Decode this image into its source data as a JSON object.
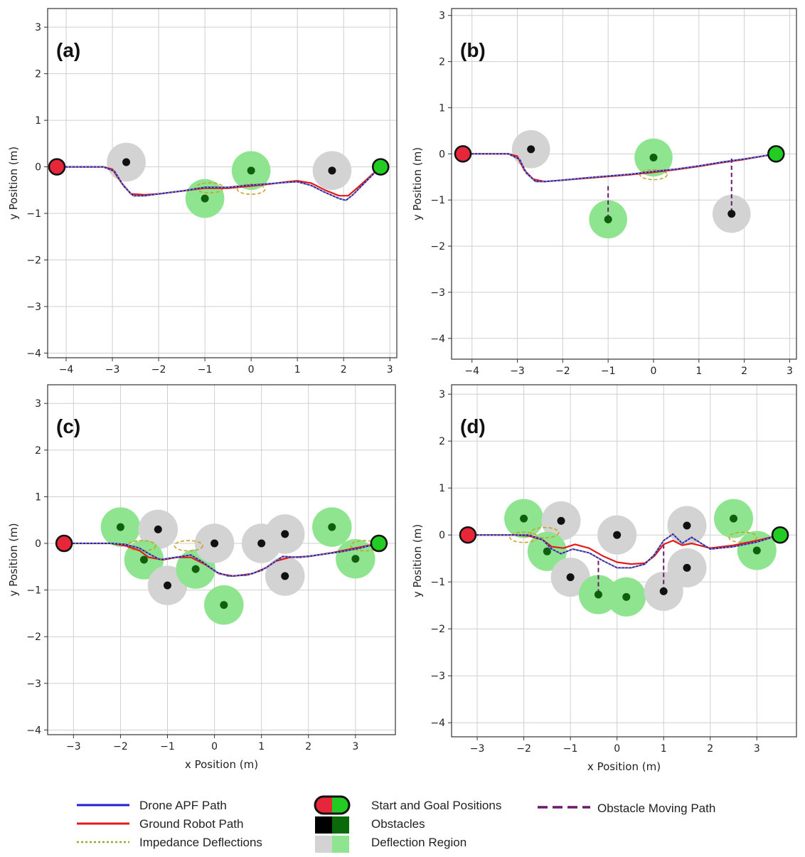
{
  "legend": {
    "drone": "Drone APF Path",
    "ground": "Ground Robot Path",
    "impedance": "Impedance Deflections",
    "start_goal": "Start and Goal Positions",
    "obstacles": "Obstacles",
    "deflection": "Deflection Region",
    "moving": "Obstacle Moving Path"
  },
  "colors": {
    "drone": "#1f1fd6",
    "ground": "#e11b1b",
    "impedance": "#c9a227",
    "moving": "#6a1b6a",
    "start": "#e8263a",
    "goal": "#22cc22",
    "grey_obstacle": "#111111",
    "green_obstacle": "#0f5f0f",
    "grey_region": "#d3d3d3",
    "green_region": "#8fe58f"
  },
  "chart_data": [
    {
      "type": "line",
      "label": "(a)",
      "xlabel": "",
      "ylabel": "y Position (m)",
      "xlim": [
        -4.4,
        3.15
      ],
      "ylim": [
        -4.1,
        3.4
      ],
      "xticks": [
        -4,
        -3,
        -2,
        -1,
        0,
        1,
        2,
        3
      ],
      "yticks": [
        -4,
        -3,
        -2,
        -1,
        0,
        1,
        2,
        3
      ],
      "start": [
        -4.2,
        0
      ],
      "goal": [
        2.8,
        0
      ],
      "obstacles": [
        {
          "x": -2.7,
          "y": 0.1,
          "kind": "grey"
        },
        {
          "x": -1.0,
          "y": -0.68,
          "kind": "green"
        },
        {
          "x": 0.0,
          "y": -0.08,
          "kind": "green"
        },
        {
          "x": 1.75,
          "y": -0.08,
          "kind": "grey"
        }
      ],
      "moving_paths": [],
      "impedance_ellipses": [
        [
          -0.9,
          -0.45
        ],
        [
          0.0,
          -0.48
        ]
      ],
      "ground_path": [
        [
          -4.2,
          0
        ],
        [
          -3.2,
          0
        ],
        [
          -3.0,
          -0.05
        ],
        [
          -2.8,
          -0.35
        ],
        [
          -2.6,
          -0.58
        ],
        [
          -2.3,
          -0.6
        ],
        [
          -2.0,
          -0.58
        ],
        [
          -1.5,
          -0.52
        ],
        [
          -1.2,
          -0.48
        ],
        [
          -1.0,
          -0.46
        ],
        [
          -0.5,
          -0.46
        ],
        [
          -0.1,
          -0.42
        ],
        [
          0.3,
          -0.38
        ],
        [
          0.8,
          -0.32
        ],
        [
          1.0,
          -0.3
        ],
        [
          1.3,
          -0.35
        ],
        [
          1.6,
          -0.5
        ],
        [
          1.9,
          -0.62
        ],
        [
          2.1,
          -0.62
        ],
        [
          2.3,
          -0.45
        ],
        [
          2.8,
          0
        ]
      ],
      "drone_path": [
        [
          -4.2,
          0
        ],
        [
          -3.2,
          0
        ],
        [
          -2.95,
          -0.1
        ],
        [
          -2.75,
          -0.42
        ],
        [
          -2.55,
          -0.62
        ],
        [
          -2.3,
          -0.62
        ],
        [
          -2.0,
          -0.58
        ],
        [
          -1.5,
          -0.52
        ],
        [
          -1.2,
          -0.47
        ],
        [
          -1.0,
          -0.44
        ],
        [
          -0.5,
          -0.44
        ],
        [
          -0.1,
          -0.4
        ],
        [
          0.3,
          -0.37
        ],
        [
          0.8,
          -0.33
        ],
        [
          1.0,
          -0.32
        ],
        [
          1.3,
          -0.4
        ],
        [
          1.6,
          -0.55
        ],
        [
          1.9,
          -0.68
        ],
        [
          2.05,
          -0.72
        ],
        [
          2.2,
          -0.6
        ],
        [
          2.5,
          -0.3
        ],
        [
          2.8,
          0
        ]
      ]
    },
    {
      "type": "line",
      "label": "(b)",
      "xlabel": "",
      "ylabel": "y Position (m)",
      "xlim": [
        -4.45,
        3.15
      ],
      "ylim": [
        -4.45,
        3.15
      ],
      "xticks": [
        -4,
        -3,
        -2,
        -1,
        0,
        1,
        2,
        3
      ],
      "yticks": [
        -4,
        -3,
        -2,
        -1,
        0,
        1,
        2,
        3
      ],
      "start": [
        -4.2,
        0
      ],
      "goal": [
        2.7,
        0
      ],
      "obstacles": [
        {
          "x": -2.7,
          "y": 0.1,
          "kind": "grey"
        },
        {
          "x": -1.0,
          "y": -1.42,
          "kind": "green"
        },
        {
          "x": 0.0,
          "y": -0.08,
          "kind": "green"
        },
        {
          "x": 1.72,
          "y": -1.3,
          "kind": "grey"
        }
      ],
      "moving_paths": [
        [
          [
            -1.0,
            -0.7
          ],
          [
            -1.0,
            -1.42
          ]
        ],
        [
          [
            1.72,
            -0.1
          ],
          [
            1.72,
            -1.3
          ]
        ]
      ],
      "impedance_ellipses": [
        [
          0.0,
          -0.45
        ]
      ],
      "ground_path": [
        [
          -4.2,
          0
        ],
        [
          -3.2,
          0
        ],
        [
          -3.0,
          -0.05
        ],
        [
          -2.85,
          -0.35
        ],
        [
          -2.65,
          -0.55
        ],
        [
          -2.4,
          -0.6
        ],
        [
          -2.0,
          -0.57
        ],
        [
          -1.5,
          -0.53
        ],
        [
          -1.0,
          -0.49
        ],
        [
          -0.5,
          -0.45
        ],
        [
          0.0,
          -0.4
        ],
        [
          0.5,
          -0.34
        ],
        [
          1.0,
          -0.27
        ],
        [
          1.5,
          -0.19
        ],
        [
          2.0,
          -0.12
        ],
        [
          2.7,
          0
        ]
      ],
      "drone_path": [
        [
          -4.2,
          0
        ],
        [
          -3.2,
          0
        ],
        [
          -2.95,
          -0.12
        ],
        [
          -2.8,
          -0.42
        ],
        [
          -2.6,
          -0.6
        ],
        [
          -2.4,
          -0.6
        ],
        [
          -2.0,
          -0.57
        ],
        [
          -1.5,
          -0.52
        ],
        [
          -1.0,
          -0.48
        ],
        [
          -0.5,
          -0.44
        ],
        [
          0.0,
          -0.38
        ],
        [
          0.5,
          -0.33
        ],
        [
          1.0,
          -0.26
        ],
        [
          1.5,
          -0.18
        ],
        [
          2.0,
          -0.11
        ],
        [
          2.7,
          0
        ]
      ]
    },
    {
      "type": "line",
      "label": "(c)",
      "xlabel": "x Position (m)",
      "ylabel": "y Position (m)",
      "xlim": [
        -3.55,
        3.85
      ],
      "ylim": [
        -4.1,
        3.4
      ],
      "xticks": [
        -3,
        -2,
        -1,
        0,
        1,
        2,
        3
      ],
      "yticks": [
        -4,
        -3,
        -2,
        -1,
        0,
        1,
        2,
        3
      ],
      "start": [
        -3.2,
        0
      ],
      "goal": [
        3.5,
        0
      ],
      "obstacles": [
        {
          "x": -2.0,
          "y": 0.35,
          "kind": "green"
        },
        {
          "x": -1.2,
          "y": 0.3,
          "kind": "grey"
        },
        {
          "x": -1.5,
          "y": -0.35,
          "kind": "green"
        },
        {
          "x": -1.0,
          "y": -0.9,
          "kind": "grey"
        },
        {
          "x": -0.4,
          "y": -0.55,
          "kind": "green"
        },
        {
          "x": 0.0,
          "y": 0.0,
          "kind": "grey"
        },
        {
          "x": 0.2,
          "y": -1.32,
          "kind": "green"
        },
        {
          "x": 1.0,
          "y": 0.0,
          "kind": "grey"
        },
        {
          "x": 1.5,
          "y": 0.2,
          "kind": "grey"
        },
        {
          "x": 1.5,
          "y": -0.7,
          "kind": "grey"
        },
        {
          "x": 2.5,
          "y": 0.35,
          "kind": "green"
        },
        {
          "x": 3.0,
          "y": -0.33,
          "kind": "green"
        }
      ],
      "moving_paths": [],
      "impedance_ellipses": [
        [
          -1.55,
          -0.05
        ],
        [
          -0.55,
          -0.05
        ],
        [
          3.2,
          -0.05
        ]
      ],
      "ground_path": [
        [
          -3.2,
          0
        ],
        [
          -2.2,
          0
        ],
        [
          -1.9,
          -0.05
        ],
        [
          -1.6,
          -0.15
        ],
        [
          -1.4,
          -0.3
        ],
        [
          -1.1,
          -0.35
        ],
        [
          -0.8,
          -0.3
        ],
        [
          -0.5,
          -0.3
        ],
        [
          -0.2,
          -0.45
        ],
        [
          0.1,
          -0.65
        ],
        [
          0.4,
          -0.7
        ],
        [
          0.8,
          -0.65
        ],
        [
          1.1,
          -0.52
        ],
        [
          1.3,
          -0.38
        ],
        [
          1.6,
          -0.3
        ],
        [
          2.0,
          -0.28
        ],
        [
          2.5,
          -0.2
        ],
        [
          3.0,
          -0.1
        ],
        [
          3.5,
          0
        ]
      ],
      "drone_path": [
        [
          -3.2,
          0
        ],
        [
          -2.2,
          0
        ],
        [
          -1.9,
          -0.02
        ],
        [
          -1.6,
          -0.1
        ],
        [
          -1.35,
          -0.25
        ],
        [
          -1.15,
          -0.35
        ],
        [
          -0.85,
          -0.3
        ],
        [
          -0.5,
          -0.25
        ],
        [
          -0.25,
          -0.4
        ],
        [
          0.05,
          -0.62
        ],
        [
          0.3,
          -0.7
        ],
        [
          0.7,
          -0.68
        ],
        [
          1.0,
          -0.58
        ],
        [
          1.25,
          -0.42
        ],
        [
          1.45,
          -0.28
        ],
        [
          1.8,
          -0.3
        ],
        [
          2.2,
          -0.25
        ],
        [
          2.7,
          -0.18
        ],
        [
          3.1,
          -0.1
        ],
        [
          3.5,
          0
        ]
      ]
    },
    {
      "type": "line",
      "label": "(d)",
      "xlabel": "x Position (m)",
      "ylabel": "y Position (m)",
      "xlim": [
        -3.55,
        3.85
      ],
      "ylim": [
        -4.3,
        3.2
      ],
      "xticks": [
        -3,
        -2,
        -1,
        0,
        1,
        2,
        3
      ],
      "yticks": [
        -4,
        -3,
        -2,
        -1,
        0,
        1,
        2,
        3
      ],
      "start": [
        -3.2,
        0
      ],
      "goal": [
        3.5,
        0
      ],
      "obstacles": [
        {
          "x": -2.0,
          "y": 0.35,
          "kind": "green"
        },
        {
          "x": -1.2,
          "y": 0.3,
          "kind": "grey"
        },
        {
          "x": -1.5,
          "y": -0.35,
          "kind": "green"
        },
        {
          "x": -1.0,
          "y": -0.9,
          "kind": "grey"
        },
        {
          "x": -0.4,
          "y": -1.27,
          "kind": "green"
        },
        {
          "x": 0.0,
          "y": 0.0,
          "kind": "grey"
        },
        {
          "x": 0.2,
          "y": -1.32,
          "kind": "green"
        },
        {
          "x": 1.0,
          "y": -1.2,
          "kind": "grey"
        },
        {
          "x": 1.5,
          "y": 0.2,
          "kind": "grey"
        },
        {
          "x": 1.5,
          "y": -0.7,
          "kind": "grey"
        },
        {
          "x": 2.5,
          "y": 0.35,
          "kind": "green"
        },
        {
          "x": 3.0,
          "y": -0.33,
          "kind": "green"
        }
      ],
      "moving_paths": [
        [
          [
            -0.4,
            -0.55
          ],
          [
            -0.4,
            -1.27
          ]
        ],
        [
          [
            1.0,
            -0.2
          ],
          [
            1.0,
            -1.2
          ]
        ]
      ],
      "impedance_ellipses": [
        [
          -2.0,
          -0.05
        ],
        [
          -1.55,
          0.05
        ],
        [
          2.7,
          -0.05
        ]
      ],
      "ground_path": [
        [
          -3.2,
          0
        ],
        [
          -2.2,
          0
        ],
        [
          -1.9,
          -0.02
        ],
        [
          -1.6,
          -0.1
        ],
        [
          -1.4,
          -0.25
        ],
        [
          -1.15,
          -0.28
        ],
        [
          -0.9,
          -0.2
        ],
        [
          -0.6,
          -0.28
        ],
        [
          -0.3,
          -0.45
        ],
        [
          0.0,
          -0.58
        ],
        [
          0.3,
          -0.62
        ],
        [
          0.6,
          -0.6
        ],
        [
          0.8,
          -0.45
        ],
        [
          1.0,
          -0.2
        ],
        [
          1.2,
          -0.12
        ],
        [
          1.4,
          -0.22
        ],
        [
          1.6,
          -0.18
        ],
        [
          2.0,
          -0.28
        ],
        [
          2.5,
          -0.22
        ],
        [
          3.0,
          -0.12
        ],
        [
          3.5,
          0
        ]
      ],
      "drone_path": [
        [
          -3.2,
          0
        ],
        [
          -2.2,
          0
        ],
        [
          -1.9,
          0.0
        ],
        [
          -1.6,
          -0.1
        ],
        [
          -1.4,
          -0.3
        ],
        [
          -1.2,
          -0.4
        ],
        [
          -0.95,
          -0.3
        ],
        [
          -0.6,
          -0.38
        ],
        [
          -0.3,
          -0.55
        ],
        [
          0.0,
          -0.7
        ],
        [
          0.3,
          -0.7
        ],
        [
          0.6,
          -0.62
        ],
        [
          0.8,
          -0.42
        ],
        [
          1.0,
          -0.12
        ],
        [
          1.2,
          0.02
        ],
        [
          1.4,
          -0.18
        ],
        [
          1.6,
          -0.05
        ],
        [
          2.0,
          -0.3
        ],
        [
          2.5,
          -0.25
        ],
        [
          3.0,
          -0.15
        ],
        [
          3.5,
          0
        ]
      ]
    }
  ]
}
